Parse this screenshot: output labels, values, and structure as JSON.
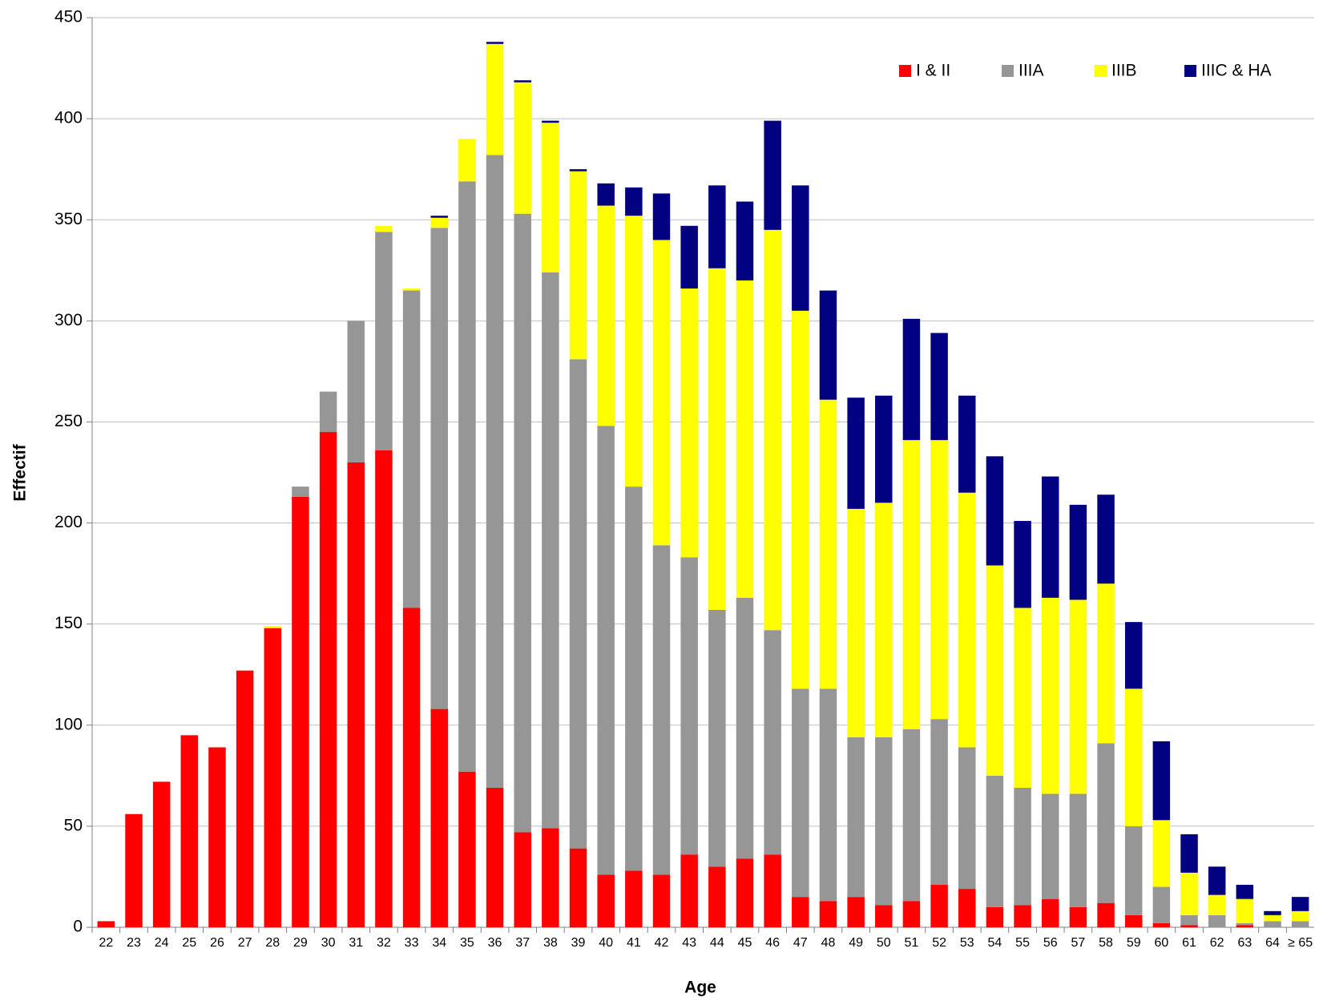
{
  "chart_data": {
    "type": "bar",
    "stacked": true,
    "x_label": "Age",
    "y_label": "Effectif",
    "categories": [
      "22",
      "23",
      "24",
      "25",
      "26",
      "27",
      "28",
      "29",
      "30",
      "31",
      "32",
      "33",
      "34",
      "35",
      "36",
      "37",
      "38",
      "39",
      "40",
      "41",
      "42",
      "43",
      "44",
      "45",
      "46",
      "47",
      "48",
      "49",
      "50",
      "51",
      "52",
      "53",
      "54",
      "55",
      "56",
      "57",
      "58",
      "59",
      "60",
      "61",
      "62",
      "63",
      "64",
      "≥ 65"
    ],
    "series": [
      {
        "name": "I & II",
        "color": "#ff0000",
        "values": [
          3,
          56,
          72,
          95,
          89,
          127,
          148,
          213,
          245,
          230,
          236,
          158,
          108,
          77,
          69,
          47,
          49,
          39,
          26,
          28,
          26,
          36,
          30,
          34,
          36,
          15,
          13,
          15,
          11,
          13,
          21,
          19,
          10,
          11,
          14,
          10,
          12,
          6,
          2,
          1,
          0,
          1,
          0,
          0
        ]
      },
      {
        "name": "IIIA",
        "color": "#969696",
        "values": [
          0,
          0,
          0,
          0,
          0,
          0,
          0,
          5,
          20,
          70,
          108,
          157,
          238,
          292,
          313,
          306,
          275,
          242,
          222,
          190,
          163,
          147,
          127,
          129,
          111,
          103,
          105,
          79,
          83,
          85,
          82,
          70,
          65,
          58,
          52,
          56,
          79,
          44,
          18,
          5,
          6,
          1,
          3,
          3
        ]
      },
      {
        "name": "IIIB",
        "color": "#ffff00",
        "values": [
          0,
          0,
          0,
          0,
          0,
          0,
          1,
          0,
          0,
          0,
          3,
          1,
          5,
          21,
          55,
          65,
          74,
          93,
          109,
          134,
          151,
          133,
          169,
          157,
          198,
          187,
          143,
          113,
          116,
          143,
          138,
          126,
          104,
          89,
          97,
          96,
          79,
          68,
          33,
          21,
          10,
          12,
          3,
          5
        ]
      },
      {
        "name": "IIIC & HA",
        "color": "#000080",
        "values": [
          0,
          0,
          0,
          0,
          0,
          0,
          0,
          0,
          0,
          0,
          0,
          0,
          1,
          0,
          1,
          1,
          1,
          1,
          11,
          14,
          23,
          31,
          41,
          39,
          54,
          62,
          54,
          55,
          53,
          60,
          53,
          48,
          54,
          43,
          60,
          47,
          44,
          33,
          39,
          19,
          14,
          7,
          2,
          7
        ]
      }
    ],
    "ylim": [
      0,
      450
    ],
    "yticks": [
      0,
      50,
      100,
      150,
      200,
      250,
      300,
      350,
      400,
      450
    ],
    "grid": true,
    "legend": "top-right"
  }
}
